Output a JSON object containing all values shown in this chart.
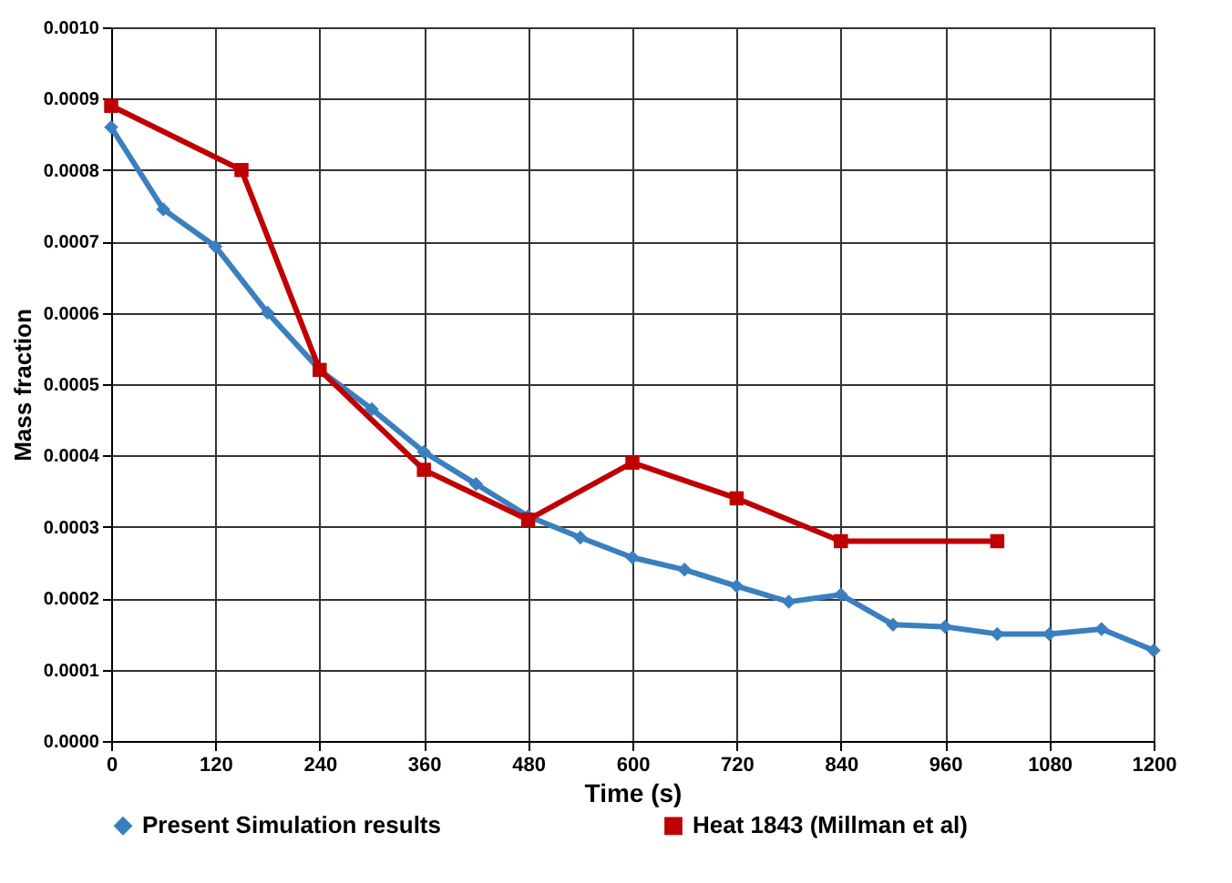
{
  "chart_data": {
    "type": "line",
    "xlabel": "Time (s)",
    "ylabel": "Mass fraction",
    "xlim": [
      0,
      1200
    ],
    "xticks": [
      0,
      120,
      240,
      360,
      480,
      600,
      720,
      840,
      960,
      1080,
      1200
    ],
    "ylim": [
      0,
      0.001
    ],
    "yticks": [
      {
        "value": 0,
        "label": "0.0000"
      },
      {
        "value": 0.0001,
        "label": "0.0001"
      },
      {
        "value": 0.0002,
        "label": "0.0002"
      },
      {
        "value": 0.0003,
        "label": "0.0003"
      },
      {
        "value": 0.0004,
        "label": "0.0004"
      },
      {
        "value": 0.0005,
        "label": "0.0005"
      },
      {
        "value": 0.0006,
        "label": "0.0006"
      },
      {
        "value": 0.0007,
        "label": "0.0007"
      },
      {
        "value": 0.0008,
        "label": "0.0008"
      },
      {
        "value": 0.0009,
        "label": "0.0009"
      },
      {
        "value": 0.001,
        "label": "0.0010"
      }
    ],
    "grid": true,
    "legend": "bottom",
    "line_style": "solid",
    "series": [
      {
        "name": "Present Simulation results",
        "color": "#3a7fbf",
        "marker": "diamond",
        "x": [
          0,
          60,
          120,
          180,
          240,
          300,
          360,
          420,
          480,
          540,
          600,
          660,
          720,
          780,
          840,
          900,
          960,
          1020,
          1080,
          1140,
          1200
        ],
        "values": [
          0.00086,
          0.000745,
          0.000693,
          0.0006,
          0.00052,
          0.000465,
          0.000405,
          0.00036,
          0.000315,
          0.000285,
          0.000257,
          0.00024,
          0.000217,
          0.000195,
          0.000205,
          0.000163,
          0.00016,
          0.00015,
          0.00015,
          0.000157,
          0.000127
        ]
      },
      {
        "name": "Heat 1843 (Millman et al)",
        "color": "#c00000",
        "marker": "square",
        "x": [
          0,
          150,
          240,
          360,
          480,
          600,
          720,
          840,
          1020
        ],
        "values": [
          0.00089,
          0.0008,
          0.00052,
          0.00038,
          0.00031,
          0.00039,
          0.00034,
          0.00028,
          0.00028
        ]
      }
    ]
  }
}
